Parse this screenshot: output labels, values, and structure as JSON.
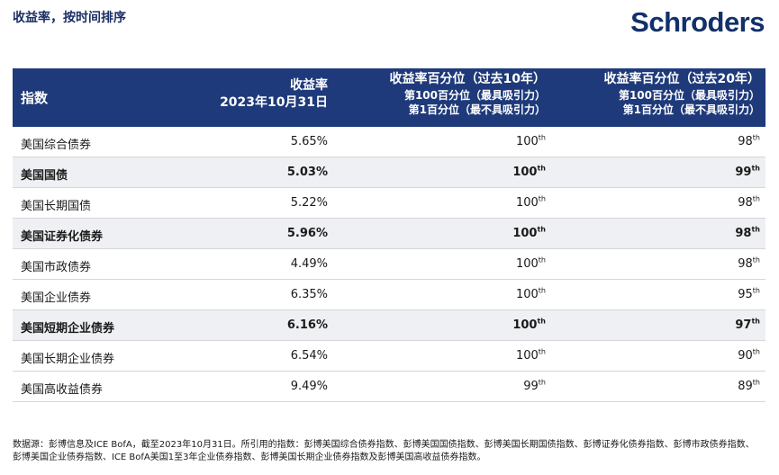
{
  "title": "收益率，按时间排序",
  "logo": "Schroders",
  "table": {
    "headers": {
      "index": "指数",
      "yield_l1": "收益率",
      "yield_l2": "2023年10月31日",
      "p10_title": "收益率百分位（过去10年）",
      "p10_sub1": "第100百分位（最具吸引力）",
      "p10_sub2": "第1百分位（最不具吸引力）",
      "p20_title": "收益率百分位（过去20年）",
      "p20_sub1": "第100百分位（最具吸引力）",
      "p20_sub2": "第1百分位（最不具吸引力）"
    },
    "suffix": "th",
    "rows": [
      {
        "name": "美国综合债券",
        "yield": "5.65%",
        "p10": "100",
        "p20": "98",
        "bold": false
      },
      {
        "name": "美国国债",
        "yield": "5.03%",
        "p10": "100",
        "p20": "99",
        "bold": true
      },
      {
        "name": "美国长期国债",
        "yield": "5.22%",
        "p10": "100",
        "p20": "98",
        "bold": false
      },
      {
        "name": "美国证券化债券",
        "yield": "5.96%",
        "p10": "100",
        "p20": "98",
        "bold": true
      },
      {
        "name": "美国市政债券",
        "yield": "4.49%",
        "p10": "100",
        "p20": "98",
        "bold": false
      },
      {
        "name": "美国企业债券",
        "yield": "6.35%",
        "p10": "100",
        "p20": "95",
        "bold": false
      },
      {
        "name": "美国短期企业债券",
        "yield": "6.16%",
        "p10": "100",
        "p20": "97",
        "bold": true
      },
      {
        "name": "美国长期企业债券",
        "yield": "6.54%",
        "p10": "100",
        "p20": "90",
        "bold": false
      },
      {
        "name": "美国高收益债券",
        "yield": "9.49%",
        "p10": "99",
        "p20": "89",
        "bold": false
      }
    ]
  },
  "footnote": "数据源：彭博信息及ICE BofA，截至2023年10月31日。所引用的指数：彭博美国综合债券指数、彭博美国国债指数、彭博美国长期国债指数、彭博证券化债券指数、彭博市政债券指数、彭博美国企业债券指数、ICE BofA美国1至3年企业债券指数、彭博美国长期企业债券指数及彭博美国高收益债券指数。"
}
